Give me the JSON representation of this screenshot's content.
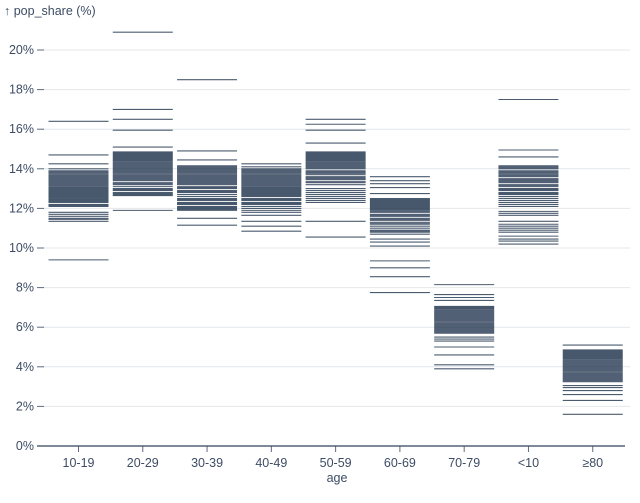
{
  "chart_data": {
    "type": "tick",
    "title": "↑ pop_share (%)",
    "ylabel": "pop_share (%)",
    "xlabel": "age",
    "grid": true,
    "legend": false,
    "ylim": [
      0,
      21.5
    ],
    "y_ticks": [
      0,
      2,
      4,
      6,
      8,
      10,
      12,
      14,
      16,
      18,
      20
    ],
    "y_tick_labels": [
      "0%",
      "2%",
      "4%",
      "6%",
      "8%",
      "10%",
      "12%",
      "14%",
      "16%",
      "18%",
      "20%"
    ],
    "categories": [
      "10-19",
      "20-29",
      "30-39",
      "40-49",
      "50-59",
      "60-69",
      "70-79",
      "<10",
      "≥80"
    ],
    "colors": {
      "tick_stroke": "#243850",
      "axis_line": "#33445c",
      "gridline": "#e4e7ea",
      "text": "#3d4c64",
      "background": "#ffffff"
    },
    "series": [
      {
        "age": "10-19",
        "values": [
          16.4,
          14.7,
          14.25,
          14.0,
          13.9,
          13.85,
          13.8,
          13.75,
          13.7,
          13.65,
          13.6,
          13.55,
          13.5,
          13.45,
          13.4,
          13.35,
          13.3,
          13.25,
          13.2,
          13.15,
          13.1,
          13.05,
          13.0,
          12.95,
          12.9,
          12.85,
          12.8,
          12.75,
          12.7,
          12.65,
          12.6,
          12.55,
          12.5,
          12.45,
          12.4,
          12.35,
          12.3,
          12.2,
          12.15,
          12.1,
          11.8,
          11.7,
          11.6,
          11.5,
          11.45,
          11.35,
          9.4
        ]
      },
      {
        "age": "20-29",
        "values": [
          20.9,
          17.0,
          16.5,
          15.95,
          15.1,
          14.85,
          14.8,
          14.75,
          14.7,
          14.65,
          14.6,
          14.55,
          14.5,
          14.45,
          14.4,
          14.35,
          14.3,
          14.25,
          14.2,
          14.15,
          14.1,
          14.05,
          14.0,
          13.95,
          13.9,
          13.85,
          13.8,
          13.75,
          13.7,
          13.65,
          13.6,
          13.55,
          13.5,
          13.45,
          13.4,
          13.3,
          13.25,
          13.2,
          13.1,
          13.0,
          12.95,
          12.9,
          12.8,
          12.75,
          12.7,
          12.65,
          11.9
        ]
      },
      {
        "age": "30-39",
        "values": [
          18.5,
          14.9,
          14.45,
          14.15,
          14.1,
          14.05,
          14.0,
          13.95,
          13.9,
          13.85,
          13.8,
          13.75,
          13.7,
          13.65,
          13.6,
          13.55,
          13.5,
          13.45,
          13.4,
          13.35,
          13.3,
          13.25,
          13.2,
          13.1,
          13.05,
          13.0,
          12.9,
          12.85,
          12.8,
          12.7,
          12.6,
          12.5,
          12.45,
          12.4,
          12.3,
          12.25,
          12.2,
          12.1,
          12.05,
          12.0,
          11.95,
          11.9,
          11.5,
          11.15
        ]
      },
      {
        "age": "40-49",
        "values": [
          14.25,
          14.1,
          14.0,
          13.95,
          13.9,
          13.85,
          13.8,
          13.75,
          13.7,
          13.65,
          13.6,
          13.55,
          13.5,
          13.45,
          13.4,
          13.35,
          13.3,
          13.25,
          13.2,
          13.15,
          13.1,
          13.05,
          13.0,
          12.95,
          12.9,
          12.85,
          12.8,
          12.75,
          12.7,
          12.65,
          12.6,
          12.5,
          12.45,
          12.4,
          12.3,
          12.25,
          12.2,
          12.1,
          12.0,
          11.9,
          11.8,
          11.65,
          11.35,
          11.1,
          10.85
        ]
      },
      {
        "age": "50-59",
        "values": [
          16.5,
          16.25,
          15.95,
          15.3,
          14.85,
          14.8,
          14.75,
          14.7,
          14.65,
          14.6,
          14.55,
          14.5,
          14.45,
          14.4,
          14.35,
          14.3,
          14.25,
          14.2,
          14.15,
          14.1,
          14.05,
          14.0,
          13.9,
          13.85,
          13.8,
          13.75,
          13.7,
          13.6,
          13.55,
          13.5,
          13.45,
          13.35,
          13.3,
          13.2,
          13.0,
          12.9,
          12.8,
          12.7,
          12.6,
          12.5,
          12.4,
          12.3,
          11.35,
          10.55
        ]
      },
      {
        "age": "60-69",
        "values": [
          13.6,
          13.4,
          13.25,
          13.05,
          12.75,
          12.5,
          12.45,
          12.4,
          12.35,
          12.3,
          12.25,
          12.2,
          12.15,
          12.1,
          12.05,
          12.0,
          11.95,
          11.9,
          11.85,
          11.8,
          11.7,
          11.65,
          11.6,
          11.5,
          11.45,
          11.4,
          11.3,
          11.25,
          11.2,
          11.1,
          11.0,
          10.9,
          10.85,
          10.8,
          10.7,
          10.45,
          10.3,
          10.1,
          9.35,
          9.0,
          8.55,
          7.75
        ]
      },
      {
        "age": "70-79",
        "values": [
          8.15,
          7.65,
          7.5,
          7.35,
          7.05,
          7.0,
          6.95,
          6.9,
          6.85,
          6.8,
          6.75,
          6.7,
          6.65,
          6.6,
          6.55,
          6.5,
          6.45,
          6.4,
          6.35,
          6.3,
          6.25,
          6.2,
          6.15,
          6.1,
          6.05,
          6.0,
          5.95,
          5.9,
          5.85,
          5.8,
          5.75,
          5.7,
          5.5,
          5.4,
          5.3,
          5.0,
          4.6,
          4.1,
          3.9
        ]
      },
      {
        "age": "<10",
        "values": [
          17.5,
          14.95,
          14.6,
          14.15,
          14.1,
          14.05,
          14.0,
          13.9,
          13.85,
          13.8,
          13.75,
          13.7,
          13.65,
          13.6,
          13.5,
          13.45,
          13.4,
          13.35,
          13.3,
          13.2,
          13.15,
          13.1,
          13.0,
          12.95,
          12.9,
          12.8,
          12.75,
          12.7,
          12.6,
          12.5,
          12.4,
          12.3,
          12.2,
          12.1,
          11.85,
          11.75,
          11.65,
          11.35,
          11.2,
          11.1,
          11.0,
          10.9,
          10.8,
          10.6,
          10.45,
          10.35,
          10.2
        ]
      },
      {
        "age": "≥80",
        "values": [
          5.1,
          4.85,
          4.8,
          4.75,
          4.7,
          4.65,
          4.6,
          4.55,
          4.5,
          4.45,
          4.4,
          4.35,
          4.3,
          4.25,
          4.2,
          4.15,
          4.1,
          4.05,
          4.0,
          3.95,
          3.9,
          3.85,
          3.8,
          3.75,
          3.7,
          3.65,
          3.6,
          3.55,
          3.5,
          3.45,
          3.4,
          3.35,
          3.3,
          3.25,
          3.05,
          2.95,
          2.8,
          2.6,
          2.3,
          1.6
        ]
      }
    ]
  }
}
